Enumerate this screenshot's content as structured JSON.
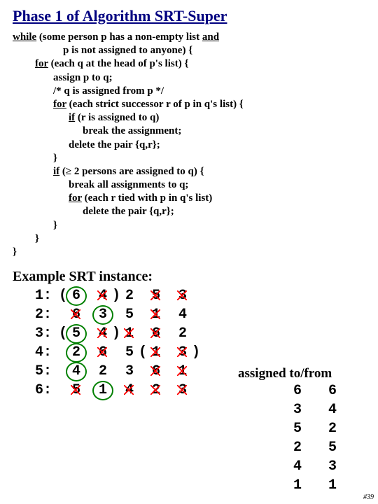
{
  "title": "Phase 1 of Algorithm SRT-Super",
  "algo": {
    "l1": {
      "pre": "while",
      "post": " (some person p has a non-empty list ",
      "post2": "and"
    },
    "l2": "p is not assigned to anyone) {",
    "l3": {
      "pre": "for",
      "post": " (each q at the head of p's list) {"
    },
    "l4": "assign p to q;",
    "l5": "/* q is assigned from p */",
    "l6": {
      "pre": "for",
      "post": " (each strict successor r of p in q's list) {"
    },
    "l7": {
      "pre": "if",
      "post": " (r is assigned to q)"
    },
    "l8": "break the assignment;",
    "l9": "delete the pair {q,r};",
    "l10": "}",
    "l11": {
      "pre": "if",
      "post": "  (≥ 2 persons are assigned to q) {"
    },
    "l12": "break all assignments to q;",
    "l13": {
      "pre": "for",
      "post": " (each r tied with p in q's list)"
    },
    "l14": "delete the pair {q,r};",
    "l15": "}",
    "l16": "}",
    "l17": "}"
  },
  "example_title": "Example SRT instance:",
  "assigned_header": "assigned to/from",
  "pref": {
    "rows": [
      {
        "id": "1:",
        "cells": [
          {
            "v": "6",
            "c": true,
            "s": false,
            "pl": "(",
            "pr": ""
          },
          {
            "v": "4",
            "c": false,
            "s": true,
            "pl": "",
            "pr": ")"
          },
          {
            "v": "2",
            "c": false,
            "s": false,
            "pl": "",
            "pr": ""
          },
          {
            "v": "5",
            "c": false,
            "s": true,
            "pl": "",
            "pr": ""
          },
          {
            "v": "3",
            "c": false,
            "s": true,
            "pl": "",
            "pr": ""
          }
        ]
      },
      {
        "id": "2:",
        "cells": [
          {
            "v": "6",
            "c": false,
            "s": true,
            "pl": "",
            "pr": ""
          },
          {
            "v": "3",
            "c": true,
            "s": false,
            "pl": "",
            "pr": ""
          },
          {
            "v": "5",
            "c": false,
            "s": false,
            "pl": "",
            "pr": ""
          },
          {
            "v": "1",
            "c": false,
            "s": true,
            "pl": "",
            "pr": ""
          },
          {
            "v": "4",
            "c": false,
            "s": false,
            "pl": "",
            "pr": ""
          }
        ]
      },
      {
        "id": "3:",
        "cells": [
          {
            "v": "5",
            "c": true,
            "s": false,
            "pl": "(",
            "pr": ""
          },
          {
            "v": "4",
            "c": false,
            "s": true,
            "pl": "",
            "pr": ")"
          },
          {
            "v": "1",
            "c": false,
            "s": true,
            "pl": "",
            "pr": ""
          },
          {
            "v": "6",
            "c": false,
            "s": true,
            "pl": "",
            "pr": ""
          },
          {
            "v": "2",
            "c": false,
            "s": false,
            "pl": "",
            "pr": ""
          }
        ]
      },
      {
        "id": "4:",
        "cells": [
          {
            "v": "2",
            "c": true,
            "s": false,
            "pl": "",
            "pr": ""
          },
          {
            "v": "6",
            "c": false,
            "s": true,
            "pl": "",
            "pr": ""
          },
          {
            "v": "5",
            "c": false,
            "s": false,
            "pl": "",
            "pr": ""
          },
          {
            "v": "1",
            "c": false,
            "s": true,
            "pl": "(",
            "pr": ""
          },
          {
            "v": "3",
            "c": false,
            "s": true,
            "pl": "",
            "pr": ")"
          }
        ]
      },
      {
        "id": "5:",
        "cells": [
          {
            "v": "4",
            "c": true,
            "s": false,
            "pl": "",
            "pr": ""
          },
          {
            "v": "2",
            "c": false,
            "s": false,
            "pl": "",
            "pr": ""
          },
          {
            "v": "3",
            "c": false,
            "s": false,
            "pl": "",
            "pr": ""
          },
          {
            "v": "6",
            "c": false,
            "s": true,
            "pl": "",
            "pr": ""
          },
          {
            "v": "1",
            "c": false,
            "s": true,
            "pl": "",
            "pr": ""
          }
        ]
      },
      {
        "id": "6:",
        "cells": [
          {
            "v": "5",
            "c": false,
            "s": true,
            "pl": "",
            "pr": ""
          },
          {
            "v": "1",
            "c": true,
            "s": false,
            "pl": "",
            "pr": ""
          },
          {
            "v": "4",
            "c": false,
            "s": true,
            "pl": "",
            "pr": ""
          },
          {
            "v": "2",
            "c": false,
            "s": true,
            "pl": "",
            "pr": ""
          },
          {
            "v": "3",
            "c": false,
            "s": true,
            "pl": "",
            "pr": ""
          }
        ]
      }
    ]
  },
  "assigned": {
    "rows": [
      {
        "to": "6",
        "from": "6"
      },
      {
        "to": "3",
        "from": "4"
      },
      {
        "to": "5",
        "from": "2"
      },
      {
        "to": "2",
        "from": "5"
      },
      {
        "to": "4",
        "from": "3"
      },
      {
        "to": "1",
        "from": "1"
      }
    ]
  },
  "colors": {
    "title": "#000080",
    "circle": "#008000",
    "strike": "#ff0000",
    "bg": "#ffffff"
  },
  "footer": "#39"
}
